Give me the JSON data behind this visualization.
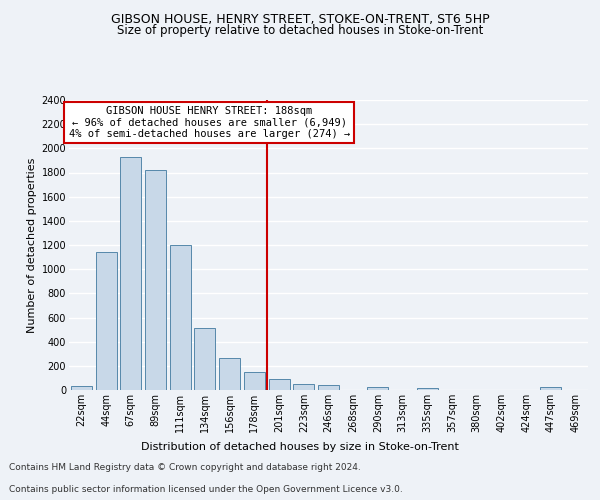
{
  "title": "GIBSON HOUSE, HENRY STREET, STOKE-ON-TRENT, ST6 5HP",
  "subtitle": "Size of property relative to detached houses in Stoke-on-Trent",
  "xlabel": "Distribution of detached houses by size in Stoke-on-Trent",
  "ylabel": "Number of detached properties",
  "categories": [
    "22sqm",
    "44sqm",
    "67sqm",
    "89sqm",
    "111sqm",
    "134sqm",
    "156sqm",
    "178sqm",
    "201sqm",
    "223sqm",
    "246sqm",
    "268sqm",
    "290sqm",
    "313sqm",
    "335sqm",
    "357sqm",
    "380sqm",
    "402sqm",
    "424sqm",
    "447sqm",
    "469sqm"
  ],
  "values": [
    30,
    1140,
    1930,
    1820,
    1200,
    510,
    265,
    150,
    90,
    50,
    45,
    0,
    25,
    0,
    15,
    0,
    0,
    0,
    0,
    25,
    0
  ],
  "bar_color": "#c8d8e8",
  "bar_edge_color": "#5588aa",
  "vline_x_index": 7.5,
  "annotation_text_line1": "GIBSON HOUSE HENRY STREET: 188sqm",
  "annotation_text_line2": "← 96% of detached houses are smaller (6,949)",
  "annotation_text_line3": "4% of semi-detached houses are larger (274) →",
  "annotation_box_color": "#ffffff",
  "annotation_box_edge": "#cc0000",
  "vline_color": "#cc0000",
  "ylim": [
    0,
    2400
  ],
  "yticks": [
    0,
    200,
    400,
    600,
    800,
    1000,
    1200,
    1400,
    1600,
    1800,
    2000,
    2200,
    2400
  ],
  "footer_line1": "Contains HM Land Registry data © Crown copyright and database right 2024.",
  "footer_line2": "Contains public sector information licensed under the Open Government Licence v3.0.",
  "bg_color": "#eef2f7",
  "plot_bg_color": "#eef2f7",
  "grid_color": "#ffffff",
  "title_fontsize": 9,
  "subtitle_fontsize": 8.5,
  "axis_label_fontsize": 8,
  "tick_fontsize": 7,
  "annotation_fontsize": 7.5,
  "footer_fontsize": 6.5
}
